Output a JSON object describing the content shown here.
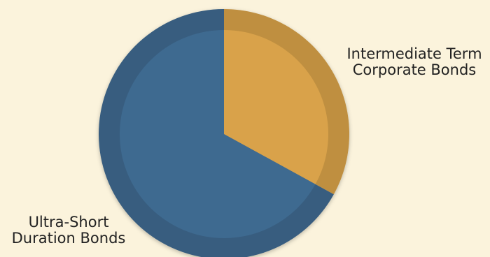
{
  "chart_data": {
    "type": "pie",
    "title": "",
    "slices": [
      {
        "label_lines": [
          "Intermediate Term",
          "Corporate Bonds"
        ],
        "value": 33,
        "color": "#d9a24a"
      },
      {
        "label_lines": [
          "Ultra-Short",
          "Duration Bonds"
        ],
        "value": 67,
        "color": "#3e6a90"
      }
    ],
    "start_angle": "12 o'clock",
    "direction": "clockwise",
    "legend": "none",
    "background_color": "#fbf3dc"
  }
}
